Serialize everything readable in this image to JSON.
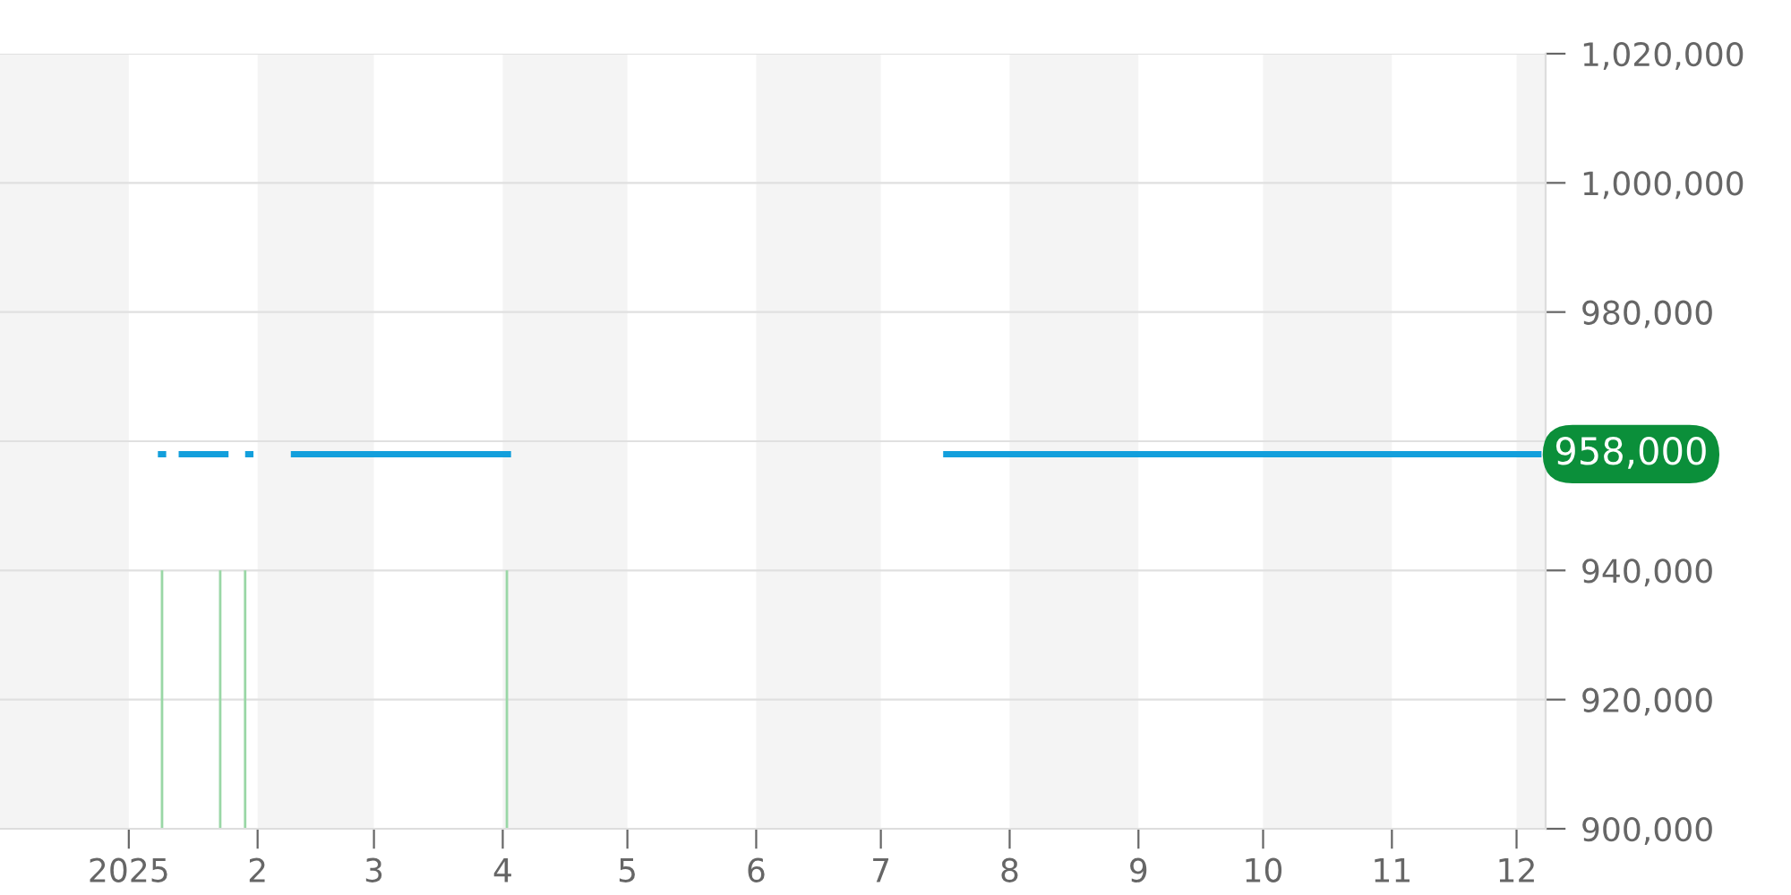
{
  "chart_data": {
    "type": "line",
    "xlim": [
      "2024-12-01",
      "2025-12-08"
    ],
    "xticks": [
      {
        "value": "2025-01-01",
        "label": "2025"
      },
      {
        "value": "2025-02-01",
        "label": "2"
      },
      {
        "value": "2025-03-01",
        "label": "3"
      },
      {
        "value": "2025-04-01",
        "label": "4"
      },
      {
        "value": "2025-05-01",
        "label": "5"
      },
      {
        "value": "2025-06-01",
        "label": "6"
      },
      {
        "value": "2025-07-01",
        "label": "7"
      },
      {
        "value": "2025-08-01",
        "label": "8"
      },
      {
        "value": "2025-09-01",
        "label": "9"
      },
      {
        "value": "2025-10-01",
        "label": "10"
      },
      {
        "value": "2025-11-01",
        "label": "11"
      },
      {
        "value": "2025-12-01",
        "label": "12"
      }
    ],
    "ylim": [
      900000,
      1020000
    ],
    "yticks": [
      {
        "value": 900000,
        "label": "900,000"
      },
      {
        "value": 920000,
        "label": "920,000"
      },
      {
        "value": 940000,
        "label": "940,000"
      },
      {
        "value": 960000,
        "label": null
      },
      {
        "value": 980000,
        "label": "980,000"
      },
      {
        "value": 1000000,
        "label": "1,000,000"
      },
      {
        "value": 1020000,
        "label": "1,020,000"
      }
    ],
    "grid": "y",
    "bands": [
      {
        "axis": "x",
        "from": "2024-12-01",
        "to": "2025-01-01",
        "color": "#f4f4f4"
      },
      {
        "axis": "x",
        "from": "2025-02-01",
        "to": "2025-03-01",
        "color": "#f4f4f4"
      },
      {
        "axis": "x",
        "from": "2025-04-01",
        "to": "2025-05-01",
        "color": "#f4f4f4"
      },
      {
        "axis": "x",
        "from": "2025-06-01",
        "to": "2025-07-01",
        "color": "#f4f4f4"
      },
      {
        "axis": "x",
        "from": "2025-08-01",
        "to": "2025-09-01",
        "color": "#f4f4f4"
      },
      {
        "axis": "x",
        "from": "2025-10-01",
        "to": "2025-11-01",
        "color": "#f4f4f4"
      },
      {
        "axis": "x",
        "from": "2025-12-01",
        "to": "2025-12-08",
        "color": "#f4f4f4"
      }
    ],
    "series": [
      {
        "type": "bar",
        "color": "#9ad7a6",
        "x": [
          "2025-01-09",
          "2025-01-23",
          "2025-01-29",
          "2025-04-02"
        ],
        "values": [
          940000,
          940000,
          940000,
          940000
        ]
      },
      {
        "color": "#139fdc",
        "x": [
          "2025-01-08",
          "2025-01-10",
          "2025-01-11",
          "2025-01-13",
          "2025-01-25",
          "2025-01-27",
          "2025-01-29",
          "2025-01-31",
          "2025-02-05",
          "2025-02-09",
          "2025-04-03",
          "2025-05-15",
          "2025-07-16",
          "2025-12-07"
        ],
        "values": [
          958000,
          958000,
          null,
          958000,
          958000,
          null,
          958000,
          958000,
          null,
          958000,
          958000,
          null,
          958000,
          958000
        ]
      }
    ],
    "annotations": [
      {
        "text": "958,000",
        "x": "2025-12-07",
        "y": 958000
      }
    ]
  }
}
